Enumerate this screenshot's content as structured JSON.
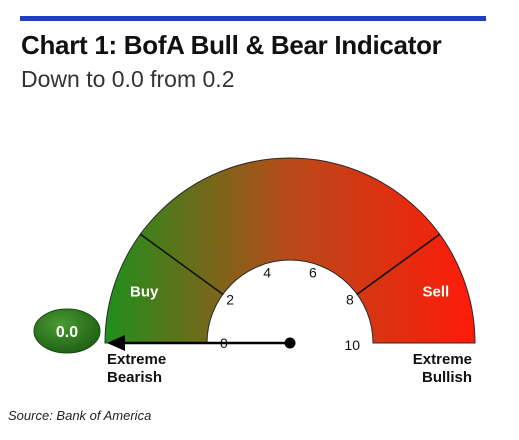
{
  "header": {
    "title": "Chart 1: BofA Bull & Bear Indicator",
    "subtitle": "Down to 0.0 from 0.2"
  },
  "footer": {
    "source": "Source: Bank of America"
  },
  "chart_data": {
    "type": "gauge",
    "title": "Chart 1: BofA Bull & Bear Indicator",
    "subtitle": "Down to 0.0 from 0.2",
    "value": 0.0,
    "value_label": "0.0",
    "previous_value": 0.2,
    "range": [
      0,
      10
    ],
    "ticks": [
      {
        "value": 0,
        "label": "0"
      },
      {
        "value": 2,
        "label": "2"
      },
      {
        "value": 4,
        "label": "4"
      },
      {
        "value": 6,
        "label": "6"
      },
      {
        "value": 8,
        "label": "8"
      },
      {
        "value": 10,
        "label": "10"
      }
    ],
    "zones": [
      {
        "label": "Buy",
        "from": 0,
        "to": 2
      },
      {
        "label": "Sell",
        "from": 8,
        "to": 10
      }
    ],
    "end_labels": {
      "left": [
        "Extreme",
        "Bearish"
      ],
      "right": [
        "Extreme",
        "Bullish"
      ]
    },
    "colors": {
      "bearish": "#1f8f1c",
      "mid": "#b84a18",
      "bullish": "#ff1a0a",
      "value_badge": "#2e7d1b",
      "top_rule": "#1f3fbf"
    },
    "source": "Source: Bank of America"
  }
}
